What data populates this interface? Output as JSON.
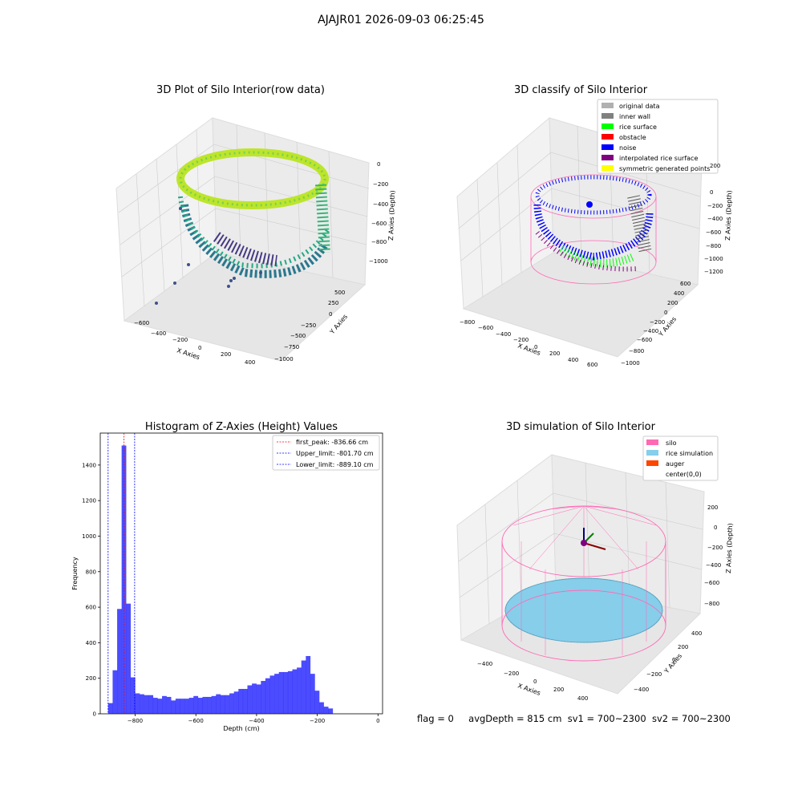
{
  "figure": {
    "suptitle": "AJAJR01 2026-09-03 06:25:45"
  },
  "footer": {
    "flag": "flag = 0",
    "avg_depth": "avgDepth = 815 cm",
    "sv1": "sv1 = 700~2300",
    "sv2": "sv2 = 700~2300"
  },
  "panels": {
    "raw": {
      "title": "3D Plot of Silo Interior(row data)",
      "xlabel": "X Axies",
      "ylabel": "Y Axies",
      "zlabel": "Z Axies (Depth)",
      "xticks": [
        "−600",
        "−400",
        "−200",
        "0",
        "200",
        "400"
      ],
      "yticks": [
        "500",
        "250",
        "0",
        "−250",
        "−500",
        "−750",
        "−1000"
      ],
      "zticks": [
        "0",
        "−200",
        "−400",
        "−600",
        "−800",
        "−1000"
      ]
    },
    "classify": {
      "title": "3D classify of Silo Interior",
      "xlabel": "X Axies",
      "ylabel": "Y Axies",
      "zlabel": "Z Axies (Depth)",
      "xticks": [
        "−800",
        "−600",
        "−400",
        "−200",
        "0",
        "200",
        "400",
        "600"
      ],
      "yticks": [
        "600",
        "400",
        "200",
        "0",
        "−200",
        "−400",
        "−600",
        "−800",
        "−1000"
      ],
      "zticks": [
        "200",
        "0",
        "−200",
        "−400",
        "−600",
        "−800",
        "−1000",
        "−1200"
      ],
      "legend": [
        {
          "label": "original data",
          "color": "#b0b0b0"
        },
        {
          "label": "inner wall",
          "color": "#808080"
        },
        {
          "label": "rice surface",
          "color": "#00ff00"
        },
        {
          "label": "obstacle",
          "color": "#ff0000"
        },
        {
          "label": "noise",
          "color": "#0000ff"
        },
        {
          "label": "interpolated rice surface",
          "color": "#800080"
        },
        {
          "label": "symmetric generated points",
          "color": "#ffff00"
        }
      ]
    },
    "simulation": {
      "title": "3D simulation of Silo Interior",
      "xlabel": "X Axies",
      "ylabel": "Y Axies",
      "zlabel": "Z Axies (Depth)",
      "xticks": [
        "−400",
        "−200",
        "0",
        "200",
        "400"
      ],
      "yticks": [
        "400",
        "200",
        "0",
        "−200",
        "−400"
      ],
      "zticks": [
        "200",
        "0",
        "−200",
        "−400",
        "−600",
        "−800"
      ],
      "legend": [
        {
          "label": "silo",
          "color": "#ff69b4"
        },
        {
          "label": "rice simulation",
          "color": "#87ceeb"
        },
        {
          "label": "auger",
          "color": "#ff4500"
        },
        {
          "label": "center(0,0)",
          "color": "#ffffff"
        }
      ]
    }
  },
  "chart_data": {
    "type": "bar",
    "title": "Histogram of Z-Axies (Height) Values",
    "xlabel": "Depth (cm)",
    "ylabel": "Frequency",
    "xlim": [
      -915,
      15
    ],
    "ylim": [
      0,
      1580
    ],
    "xticks": [
      -800,
      -600,
      -400,
      -200,
      0
    ],
    "yticks": [
      0,
      200,
      400,
      600,
      800,
      1000,
      1200,
      1400
    ],
    "bar_color": "#0000ff",
    "bin_edges_start": -889,
    "bin_width": 14.8,
    "values": [
      60,
      245,
      590,
      1510,
      620,
      205,
      115,
      110,
      105,
      105,
      90,
      85,
      100,
      95,
      75,
      85,
      85,
      85,
      90,
      100,
      90,
      95,
      95,
      100,
      110,
      105,
      105,
      115,
      125,
      140,
      140,
      160,
      170,
      165,
      185,
      200,
      215,
      225,
      235,
      235,
      240,
      250,
      260,
      300,
      325,
      225,
      130,
      65,
      40,
      30
    ],
    "vlines": [
      {
        "label": "first_peak: -836.66 cm",
        "x": -836.66,
        "color": "#ff0000"
      },
      {
        "label": "Upper_limit: -801.70 cm",
        "x": -801.7,
        "color": "#0000ff"
      },
      {
        "label": "Lower_limit: -889.10 cm",
        "x": -889.1,
        "color": "#0000ff"
      }
    ]
  }
}
